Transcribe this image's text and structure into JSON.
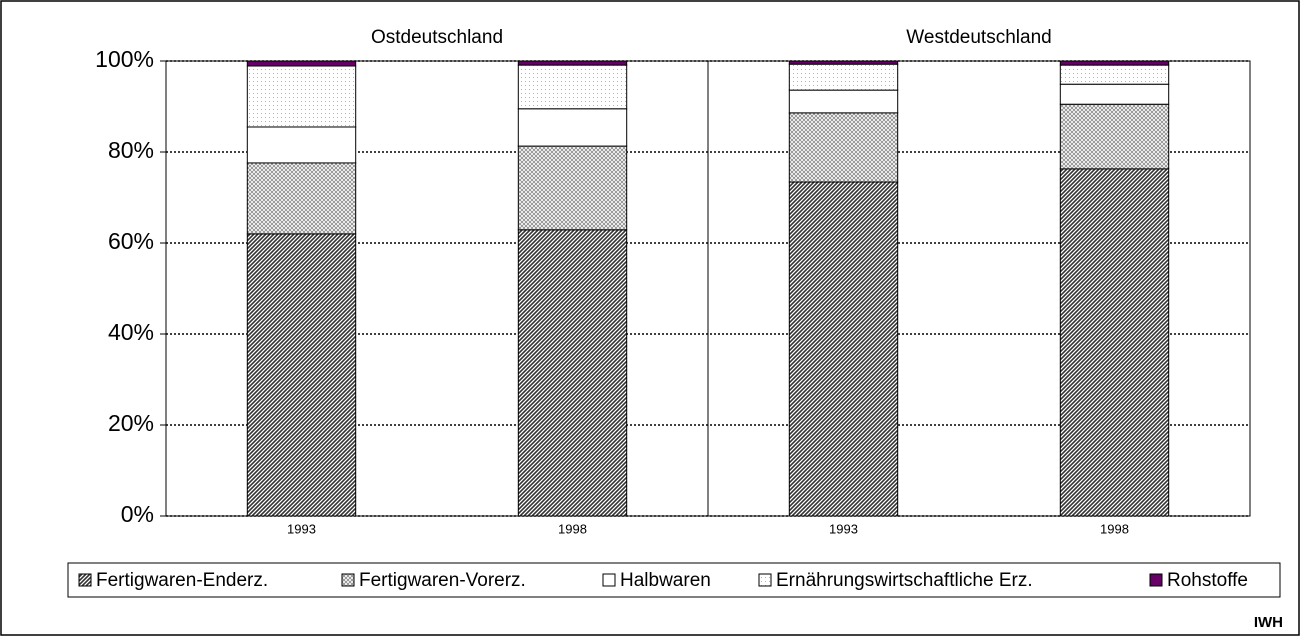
{
  "chart_data": {
    "type": "stacked_bar",
    "group_labels": [
      "Ostdeutschland",
      "Westdeutschland"
    ],
    "categories": [
      "1993",
      "1998",
      "1993",
      "1998"
    ],
    "series": [
      {
        "name": "Fertigwaren-Enderz.",
        "color": "#333333",
        "pattern": "diagonal",
        "values": [
          62.0,
          62.9,
          73.4,
          76.3
        ]
      },
      {
        "name": "Fertigwaren-Vorerz.",
        "color": "#888888",
        "pattern": "crosshatch",
        "values": [
          15.6,
          18.4,
          15.2,
          14.2
        ]
      },
      {
        "name": "Halbwaren",
        "color": "#ffffff",
        "pattern": "none",
        "values": [
          7.9,
          8.2,
          5.0,
          4.4
        ]
      },
      {
        "name": "Ernährungswirtschaftliche Erz.",
        "color": "#c8a8b8",
        "pattern": "dots",
        "values": [
          13.4,
          9.6,
          5.7,
          4.2
        ]
      },
      {
        "name": "Rohstoffe",
        "color": "#660066",
        "pattern": "none",
        "values": [
          1.1,
          0.9,
          0.7,
          0.9
        ]
      }
    ],
    "ylim": [
      0,
      100
    ],
    "yticks": [
      {
        "value": 0,
        "label": "0%"
      },
      {
        "value": 20,
        "label": "20%"
      },
      {
        "value": 40,
        "label": "40%"
      },
      {
        "value": 60,
        "label": "60%"
      },
      {
        "value": 80,
        "label": "80%"
      },
      {
        "value": 100,
        "label": "100%"
      }
    ],
    "grid": true,
    "legend": "bottom",
    "source": "IWH"
  }
}
